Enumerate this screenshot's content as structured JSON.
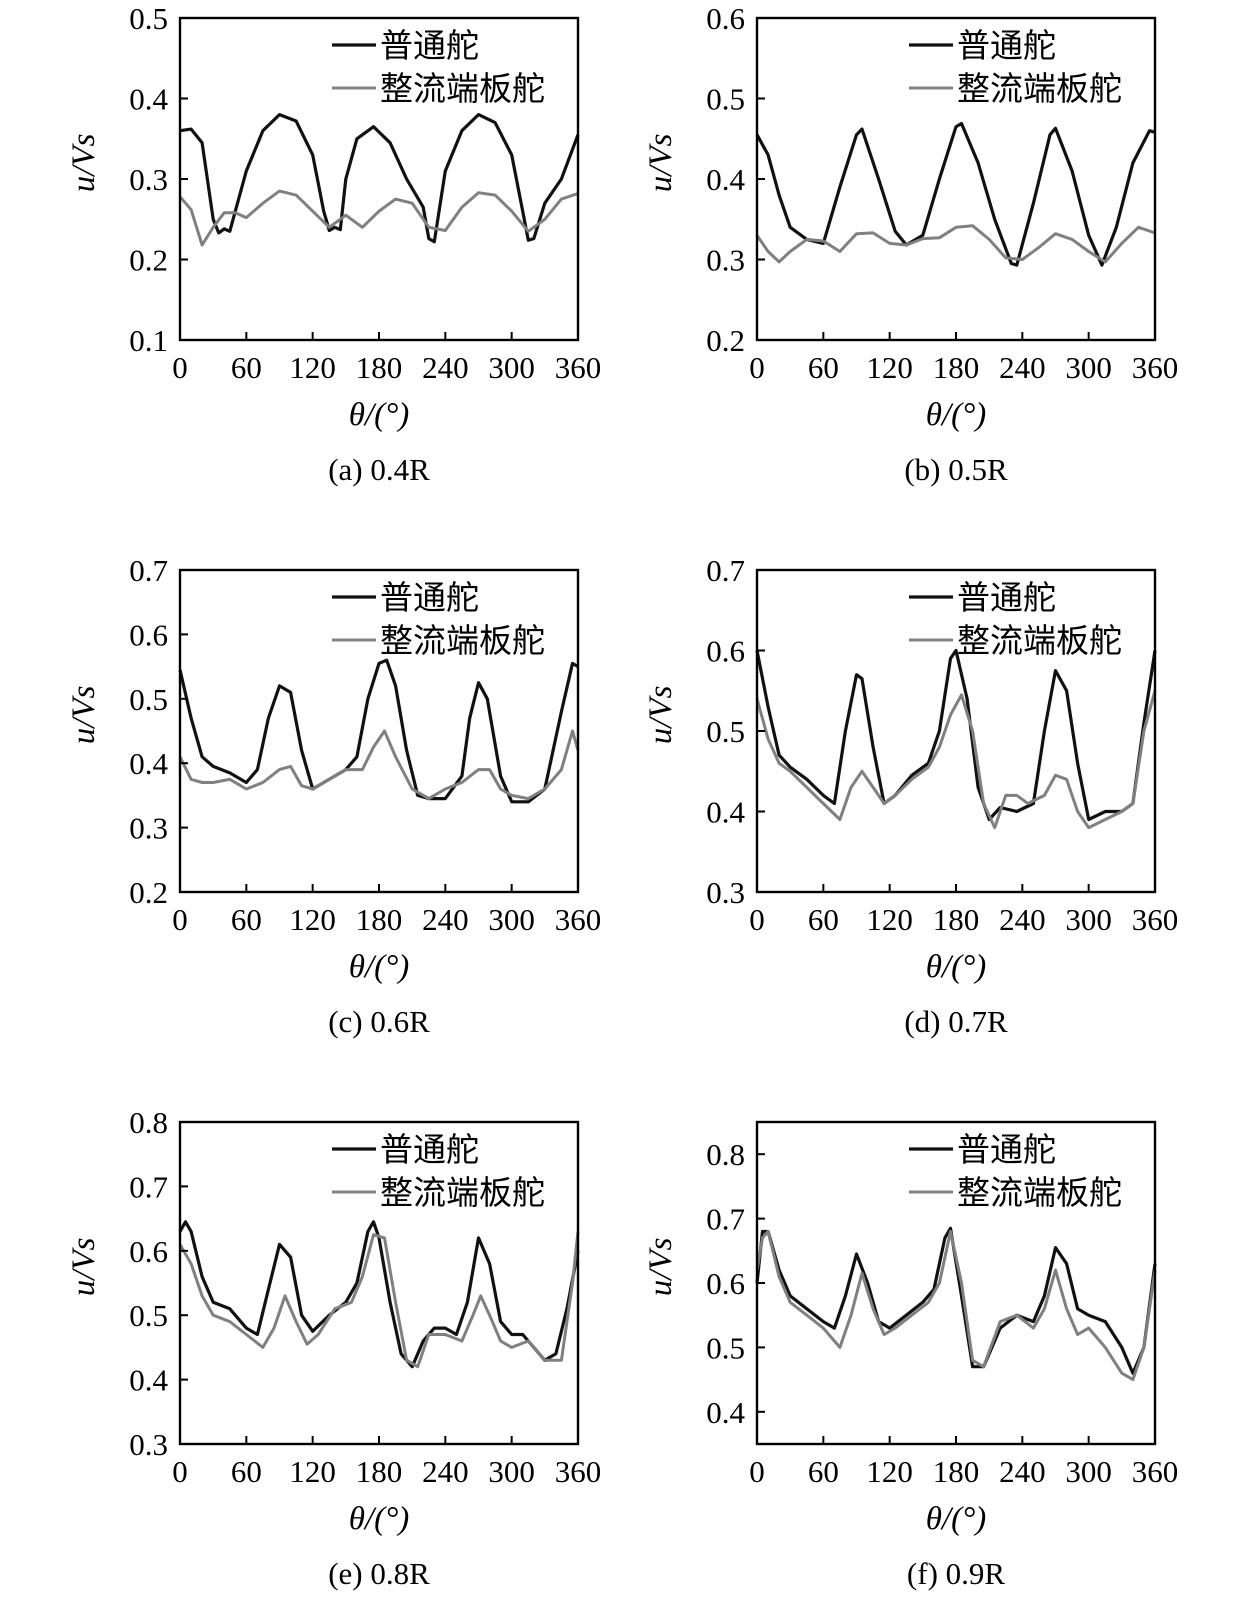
{
  "figure": {
    "xlabel": "θ/(°)",
    "ylabel": "u/Vs",
    "legend": [
      {
        "label": "普通舵",
        "color": "#111111"
      },
      {
        "label": "整流端板舵",
        "color": "#808080"
      }
    ]
  },
  "chart_data": [
    {
      "type": "line",
      "caption": "(a) 0.4R",
      "xlim": [
        0,
        360
      ],
      "ylim": [
        0.1,
        0.5
      ],
      "xticks": [
        0,
        60,
        120,
        180,
        240,
        300,
        360
      ],
      "yticks": [
        0.1,
        0.2,
        0.3,
        0.4,
        0.5
      ],
      "ytick_labels": [
        "0.1",
        "0.2",
        "0.3",
        "0.4",
        "0.5"
      ],
      "series": [
        {
          "name": "普通舵",
          "x": [
            0,
            10,
            20,
            30,
            35,
            40,
            45,
            60,
            75,
            90,
            105,
            120,
            130,
            135,
            140,
            145,
            150,
            160,
            175,
            190,
            205,
            220,
            225,
            230,
            240,
            255,
            270,
            285,
            300,
            310,
            315,
            320,
            330,
            345,
            360
          ],
          "y": [
            0.36,
            0.362,
            0.345,
            0.25,
            0.233,
            0.238,
            0.235,
            0.31,
            0.36,
            0.38,
            0.372,
            0.33,
            0.26,
            0.236,
            0.24,
            0.237,
            0.3,
            0.35,
            0.365,
            0.345,
            0.3,
            0.265,
            0.226,
            0.222,
            0.31,
            0.36,
            0.38,
            0.37,
            0.33,
            0.26,
            0.224,
            0.226,
            0.27,
            0.3,
            0.355
          ]
        },
        {
          "name": "整流端板舵",
          "x": [
            0,
            10,
            20,
            30,
            40,
            50,
            60,
            75,
            90,
            105,
            120,
            135,
            150,
            165,
            180,
            195,
            210,
            225,
            240,
            255,
            270,
            285,
            300,
            315,
            330,
            345,
            360
          ],
          "y": [
            0.278,
            0.262,
            0.218,
            0.24,
            0.258,
            0.258,
            0.252,
            0.27,
            0.285,
            0.28,
            0.26,
            0.24,
            0.255,
            0.24,
            0.26,
            0.275,
            0.27,
            0.24,
            0.236,
            0.265,
            0.283,
            0.28,
            0.26,
            0.235,
            0.25,
            0.275,
            0.282
          ]
        }
      ]
    },
    {
      "type": "line",
      "caption": "(b) 0.5R",
      "xlim": [
        0,
        360
      ],
      "ylim": [
        0.2,
        0.6
      ],
      "xticks": [
        0,
        60,
        120,
        180,
        240,
        300,
        360
      ],
      "yticks": [
        0.2,
        0.3,
        0.4,
        0.5,
        0.6
      ],
      "ytick_labels": [
        "0.2",
        "0.3",
        "0.4",
        "0.5",
        "0.6"
      ],
      "series": [
        {
          "name": "普通舵",
          "x": [
            0,
            10,
            20,
            30,
            45,
            60,
            75,
            90,
            95,
            110,
            125,
            135,
            150,
            165,
            180,
            185,
            200,
            215,
            230,
            235,
            250,
            265,
            270,
            285,
            300,
            312,
            325,
            340,
            355,
            360
          ],
          "y": [
            0.455,
            0.43,
            0.38,
            0.34,
            0.325,
            0.32,
            0.39,
            0.455,
            0.462,
            0.4,
            0.335,
            0.318,
            0.33,
            0.4,
            0.465,
            0.469,
            0.42,
            0.35,
            0.295,
            0.293,
            0.37,
            0.455,
            0.463,
            0.41,
            0.33,
            0.293,
            0.34,
            0.42,
            0.46,
            0.458
          ]
        },
        {
          "name": "整流端板舵",
          "x": [
            0,
            10,
            20,
            30,
            45,
            60,
            75,
            90,
            105,
            120,
            135,
            150,
            165,
            180,
            195,
            210,
            225,
            240,
            255,
            270,
            285,
            300,
            315,
            330,
            345,
            360
          ],
          "y": [
            0.33,
            0.31,
            0.297,
            0.31,
            0.325,
            0.323,
            0.31,
            0.332,
            0.333,
            0.32,
            0.318,
            0.326,
            0.327,
            0.34,
            0.342,
            0.325,
            0.302,
            0.3,
            0.315,
            0.332,
            0.325,
            0.31,
            0.297,
            0.32,
            0.34,
            0.333
          ]
        }
      ]
    },
    {
      "type": "line",
      "caption": "(c) 0.6R",
      "xlim": [
        0,
        360
      ],
      "ylim": [
        0.2,
        0.7
      ],
      "xticks": [
        0,
        60,
        120,
        180,
        240,
        300,
        360
      ],
      "yticks": [
        0.2,
        0.3,
        0.4,
        0.5,
        0.6,
        0.7
      ],
      "ytick_labels": [
        "0.2",
        "0.3",
        "0.4",
        "0.5",
        "0.6",
        "0.7"
      ],
      "series": [
        {
          "name": "普通舵",
          "x": [
            0,
            10,
            20,
            30,
            45,
            60,
            70,
            80,
            90,
            100,
            110,
            120,
            135,
            150,
            160,
            170,
            180,
            187,
            195,
            205,
            215,
            225,
            240,
            255,
            262,
            270,
            278,
            290,
            300,
            315,
            330,
            345,
            355,
            360
          ],
          "y": [
            0.545,
            0.47,
            0.41,
            0.395,
            0.385,
            0.37,
            0.39,
            0.47,
            0.52,
            0.51,
            0.42,
            0.36,
            0.375,
            0.39,
            0.41,
            0.5,
            0.555,
            0.56,
            0.52,
            0.42,
            0.35,
            0.345,
            0.345,
            0.38,
            0.47,
            0.525,
            0.5,
            0.38,
            0.34,
            0.34,
            0.36,
            0.48,
            0.555,
            0.55
          ]
        },
        {
          "name": "整流端板舵",
          "x": [
            0,
            10,
            20,
            30,
            45,
            60,
            75,
            90,
            100,
            110,
            120,
            135,
            150,
            165,
            175,
            185,
            195,
            210,
            225,
            240,
            255,
            270,
            280,
            290,
            300,
            315,
            330,
            345,
            355,
            360
          ],
          "y": [
            0.41,
            0.375,
            0.37,
            0.37,
            0.375,
            0.36,
            0.37,
            0.39,
            0.395,
            0.365,
            0.36,
            0.375,
            0.39,
            0.39,
            0.425,
            0.45,
            0.41,
            0.36,
            0.345,
            0.36,
            0.37,
            0.39,
            0.39,
            0.36,
            0.35,
            0.345,
            0.36,
            0.39,
            0.45,
            0.42
          ]
        }
      ]
    },
    {
      "type": "line",
      "caption": "(d) 0.7R",
      "xlim": [
        0,
        360
      ],
      "ylim": [
        0.3,
        0.7
      ],
      "xticks": [
        0,
        60,
        120,
        180,
        240,
        300,
        360
      ],
      "yticks": [
        0.3,
        0.4,
        0.5,
        0.6,
        0.7
      ],
      "ytick_labels": [
        "0.3",
        "0.4",
        "0.5",
        "0.6",
        "0.7"
      ],
      "series": [
        {
          "name": "普通舵",
          "x": [
            0,
            10,
            20,
            30,
            45,
            60,
            70,
            80,
            90,
            95,
            105,
            115,
            125,
            140,
            155,
            165,
            175,
            180,
            190,
            200,
            210,
            220,
            235,
            250,
            260,
            270,
            280,
            290,
            300,
            315,
            330,
            340,
            350,
            360
          ],
          "y": [
            0.6,
            0.53,
            0.47,
            0.455,
            0.44,
            0.42,
            0.41,
            0.5,
            0.57,
            0.565,
            0.48,
            0.41,
            0.42,
            0.445,
            0.46,
            0.5,
            0.59,
            0.6,
            0.54,
            0.43,
            0.39,
            0.405,
            0.4,
            0.41,
            0.5,
            0.575,
            0.55,
            0.46,
            0.39,
            0.4,
            0.4,
            0.41,
            0.51,
            0.6
          ]
        },
        {
          "name": "整流端板舵",
          "x": [
            0,
            10,
            20,
            30,
            45,
            60,
            75,
            85,
            95,
            105,
            115,
            125,
            140,
            155,
            165,
            175,
            185,
            195,
            205,
            215,
            225,
            235,
            245,
            260,
            270,
            280,
            290,
            300,
            315,
            330,
            340,
            350,
            360
          ],
          "y": [
            0.54,
            0.49,
            0.46,
            0.45,
            0.43,
            0.41,
            0.39,
            0.43,
            0.45,
            0.43,
            0.41,
            0.42,
            0.44,
            0.455,
            0.48,
            0.52,
            0.545,
            0.5,
            0.41,
            0.38,
            0.42,
            0.42,
            0.41,
            0.42,
            0.445,
            0.44,
            0.4,
            0.38,
            0.39,
            0.4,
            0.41,
            0.5,
            0.55
          ]
        }
      ]
    },
    {
      "type": "line",
      "caption": "(e) 0.8R",
      "xlim": [
        0,
        360
      ],
      "ylim": [
        0.3,
        0.8
      ],
      "xticks": [
        0,
        60,
        120,
        180,
        240,
        300,
        360
      ],
      "yticks": [
        0.3,
        0.4,
        0.5,
        0.6,
        0.7,
        0.8
      ],
      "ytick_labels": [
        "0.3",
        "0.4",
        "0.5",
        "0.6",
        "0.7",
        "0.8"
      ],
      "series": [
        {
          "name": "普通舵",
          "x": [
            0,
            5,
            10,
            20,
            30,
            45,
            60,
            70,
            80,
            90,
            100,
            110,
            120,
            135,
            150,
            160,
            170,
            175,
            180,
            190,
            200,
            210,
            220,
            230,
            240,
            250,
            260,
            270,
            280,
            290,
            300,
            310,
            320,
            330,
            340,
            350,
            360
          ],
          "y": [
            0.63,
            0.645,
            0.63,
            0.56,
            0.52,
            0.51,
            0.48,
            0.47,
            0.54,
            0.61,
            0.59,
            0.5,
            0.475,
            0.5,
            0.52,
            0.55,
            0.63,
            0.645,
            0.62,
            0.52,
            0.44,
            0.42,
            0.46,
            0.48,
            0.48,
            0.47,
            0.52,
            0.62,
            0.58,
            0.49,
            0.47,
            0.47,
            0.45,
            0.43,
            0.44,
            0.51,
            0.6
          ]
        },
        {
          "name": "整流端板舵",
          "x": [
            0,
            10,
            20,
            30,
            45,
            60,
            75,
            85,
            95,
            105,
            115,
            125,
            140,
            155,
            165,
            175,
            185,
            195,
            205,
            215,
            225,
            240,
            255,
            265,
            272,
            280,
            290,
            300,
            315,
            330,
            345,
            355,
            360
          ],
          "y": [
            0.61,
            0.58,
            0.53,
            0.5,
            0.49,
            0.47,
            0.45,
            0.48,
            0.53,
            0.49,
            0.455,
            0.47,
            0.51,
            0.52,
            0.56,
            0.625,
            0.62,
            0.52,
            0.43,
            0.42,
            0.47,
            0.47,
            0.46,
            0.5,
            0.53,
            0.5,
            0.46,
            0.45,
            0.46,
            0.43,
            0.43,
            0.55,
            0.63
          ]
        }
      ]
    },
    {
      "type": "line",
      "caption": "(f) 0.9R",
      "xlim": [
        0,
        360
      ],
      "ylim": [
        0.35,
        0.85
      ],
      "xticks": [
        0,
        60,
        120,
        180,
        240,
        300,
        360
      ],
      "yticks": [
        0.4,
        0.5,
        0.6,
        0.7,
        0.8
      ],
      "ytick_labels": [
        "0.4",
        "0.5",
        "0.6",
        "0.7",
        "0.8"
      ],
      "series": [
        {
          "name": "普通舵",
          "x": [
            0,
            5,
            10,
            20,
            30,
            45,
            60,
            70,
            80,
            90,
            100,
            110,
            120,
            135,
            150,
            160,
            170,
            175,
            185,
            195,
            205,
            220,
            235,
            250,
            260,
            270,
            280,
            290,
            300,
            315,
            330,
            340,
            350,
            360
          ],
          "y": [
            0.6,
            0.68,
            0.68,
            0.62,
            0.58,
            0.56,
            0.54,
            0.53,
            0.58,
            0.645,
            0.6,
            0.54,
            0.53,
            0.55,
            0.57,
            0.59,
            0.67,
            0.685,
            0.58,
            0.47,
            0.47,
            0.53,
            0.55,
            0.54,
            0.58,
            0.655,
            0.63,
            0.56,
            0.55,
            0.54,
            0.5,
            0.46,
            0.5,
            0.63
          ]
        },
        {
          "name": "整流端板舵",
          "x": [
            0,
            5,
            10,
            20,
            30,
            45,
            60,
            75,
            85,
            95,
            105,
            115,
            125,
            140,
            155,
            165,
            175,
            185,
            195,
            205,
            220,
            235,
            250,
            260,
            270,
            280,
            290,
            300,
            315,
            330,
            340,
            350,
            360
          ],
          "y": [
            0.62,
            0.67,
            0.68,
            0.61,
            0.57,
            0.55,
            0.53,
            0.5,
            0.55,
            0.615,
            0.56,
            0.52,
            0.53,
            0.55,
            0.57,
            0.6,
            0.68,
            0.6,
            0.48,
            0.47,
            0.54,
            0.55,
            0.53,
            0.56,
            0.62,
            0.56,
            0.52,
            0.53,
            0.5,
            0.46,
            0.45,
            0.5,
            0.62
          ]
        }
      ]
    }
  ]
}
